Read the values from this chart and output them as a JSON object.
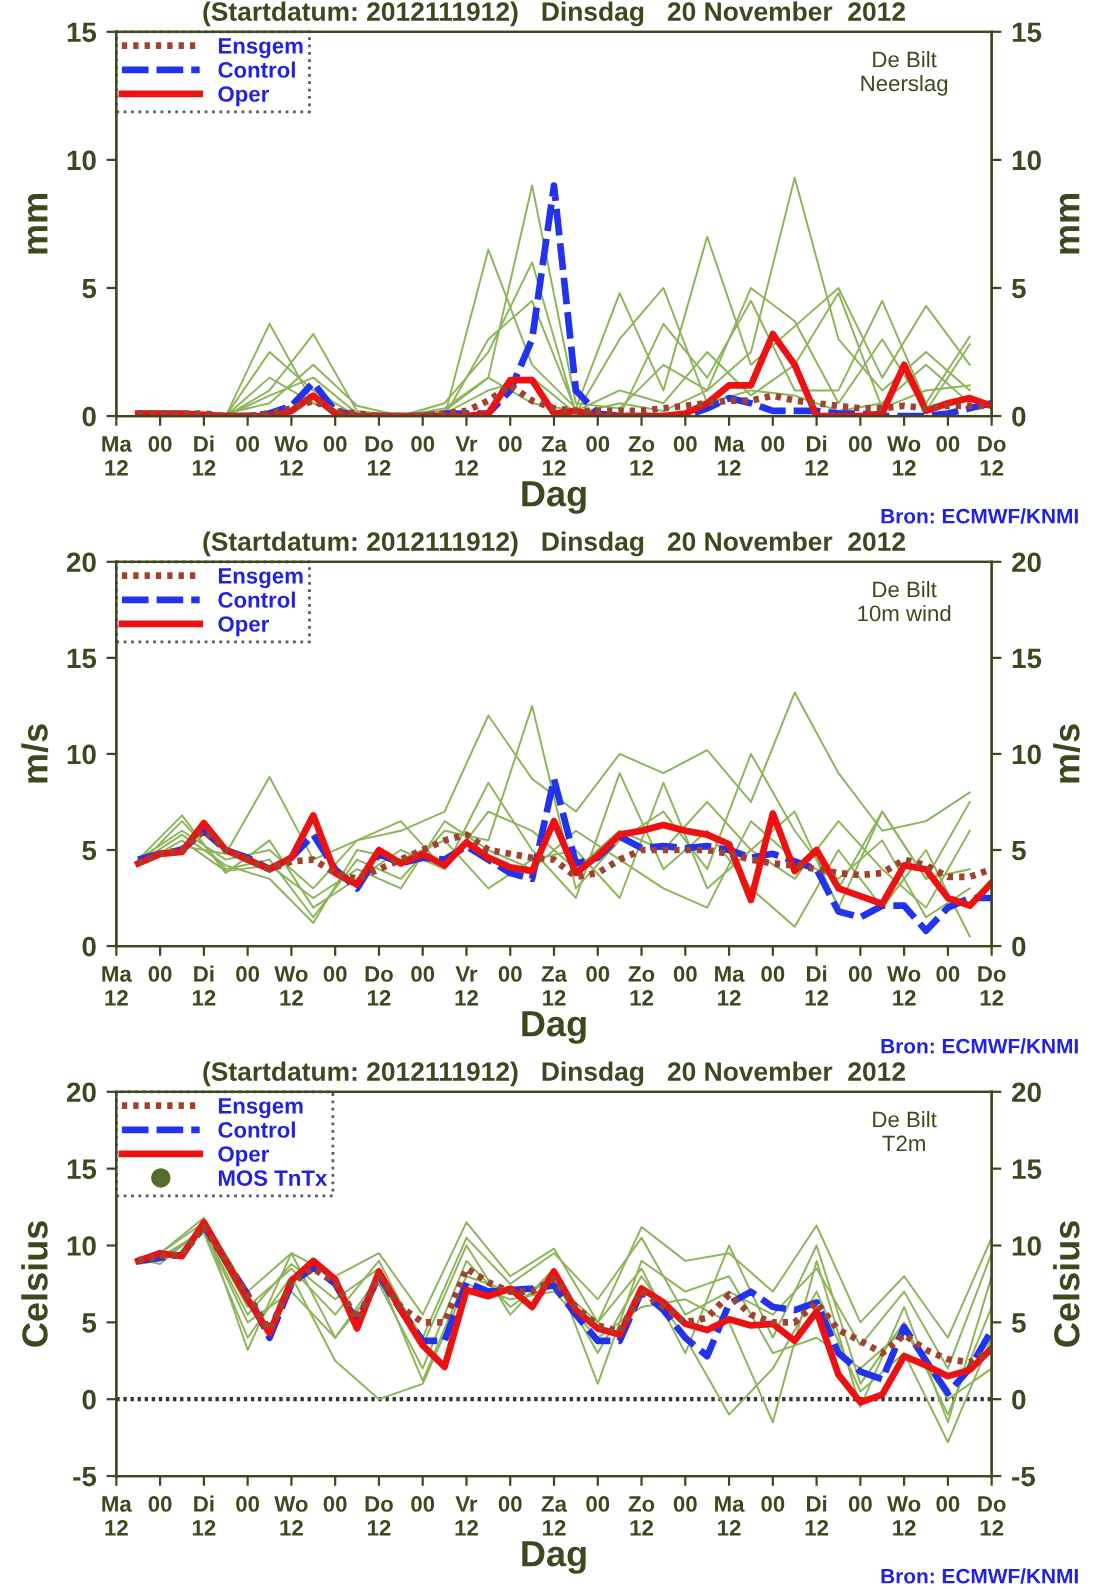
{
  "chart_data": [
    {
      "type": "line",
      "title": "(Startdatum: 2012111912)   Dinsdag   20 November  2012",
      "xlabel": "Dag",
      "ylabel": "mm",
      "y2label": "mm",
      "xlim": [
        "2012-11-19T12:00",
        "2012-11-29T12:00"
      ],
      "xticks": [
        {
          "value": "2012-11-19T12:00",
          "label": "Ma\n12"
        },
        {
          "value": "2012-11-20T00:00",
          "label": "00"
        },
        {
          "value": "2012-11-20T12:00",
          "label": "Di\n12"
        },
        {
          "value": "2012-11-21T00:00",
          "label": "00"
        },
        {
          "value": "2012-11-21T12:00",
          "label": "Wo\n12"
        },
        {
          "value": "2012-11-22T00:00",
          "label": "00"
        },
        {
          "value": "2012-11-22T12:00",
          "label": "Do\n12"
        },
        {
          "value": "2012-11-23T00:00",
          "label": "00"
        },
        {
          "value": "2012-11-23T12:00",
          "label": "Vr\n12"
        },
        {
          "value": "2012-11-24T00:00",
          "label": "00"
        },
        {
          "value": "2012-11-24T12:00",
          "label": "Za\n12"
        },
        {
          "value": "2012-11-25T00:00",
          "label": "00"
        },
        {
          "value": "2012-11-25T12:00",
          "label": "Zo\n12"
        },
        {
          "value": "2012-11-26T00:00",
          "label": "00"
        },
        {
          "value": "2012-11-26T12:00",
          "label": "Ma\n12"
        },
        {
          "value": "2012-11-27T00:00",
          "label": "00"
        },
        {
          "value": "2012-11-27T12:00",
          "label": "Di\n12"
        },
        {
          "value": "2012-11-28T00:00",
          "label": "00"
        },
        {
          "value": "2012-11-28T12:00",
          "label": "Wo\n12"
        },
        {
          "value": "2012-11-29T00:00",
          "label": "00"
        },
        {
          "value": "2012-11-29T12:00",
          "label": "Do\n12"
        }
      ],
      "x": [
        "2012-11-19T18:00",
        "2012-11-20T00:00",
        "2012-11-20T06:00",
        "2012-11-20T12:00",
        "2012-11-20T18:00",
        "2012-11-21T00:00",
        "2012-11-21T06:00",
        "2012-11-21T12:00",
        "2012-11-21T18:00",
        "2012-11-22T00:00",
        "2012-11-22T06:00",
        "2012-11-22T12:00",
        "2012-11-22T18:00",
        "2012-11-23T00:00",
        "2012-11-23T06:00",
        "2012-11-23T12:00",
        "2012-11-23T18:00",
        "2012-11-24T00:00",
        "2012-11-24T06:00",
        "2012-11-24T12:00",
        "2012-11-24T18:00",
        "2012-11-25T00:00",
        "2012-11-25T06:00",
        "2012-11-25T12:00",
        "2012-11-25T18:00",
        "2012-11-26T00:00",
        "2012-11-26T06:00",
        "2012-11-26T12:00",
        "2012-11-26T18:00",
        "2012-11-27T00:00",
        "2012-11-27T06:00",
        "2012-11-27T12:00",
        "2012-11-27T18:00",
        "2012-11-28T00:00",
        "2012-11-28T06:00",
        "2012-11-28T12:00",
        "2012-11-28T18:00",
        "2012-11-29T00:00",
        "2012-11-29T06:00",
        "2012-11-29T12:00"
      ],
      "ylim": [
        0,
        15
      ],
      "yticks": [
        0,
        5,
        10,
        15
      ],
      "y2lim": [
        0,
        15
      ],
      "y2ticks": [
        0,
        5,
        10,
        15
      ],
      "legend": "top left",
      "grid": false,
      "annotations": [
        "De Bilt\nNeerslag",
        "Bron: ECMWF/KNMI"
      ],
      "series": [
        {
          "color": "#8cb55a",
          "line_style": "solid",
          "x": [
            "2012-11-19T18:00",
            "2012-11-20T06:00",
            "2012-11-20T18:00",
            "2012-11-21T06:00",
            "2012-11-21T18:00",
            "2012-11-22T06:00",
            "2012-11-22T18:00",
            "2012-11-23T06:00",
            "2012-11-23T18:00",
            "2012-11-24T06:00",
            "2012-11-24T18:00",
            "2012-11-25T06:00",
            "2012-11-25T18:00",
            "2012-11-26T06:00",
            "2012-11-26T18:00",
            "2012-11-27T06:00",
            "2012-11-27T18:00",
            "2012-11-28T06:00",
            "2012-11-28T18:00",
            "2012-11-29T06:00"
          ],
          "values": [
            0.1,
            0.1,
            0,
            3.6,
            0.5,
            0,
            0,
            0.2,
            1.5,
            9.0,
            0.5,
            0.3,
            2.0,
            1.0,
            2.5,
            9.3,
            3.0,
            1.0,
            2.5,
            1.0
          ]
        },
        {
          "color": "#8cb55a",
          "line_style": "solid",
          "x": [
            "2012-11-19T18:00",
            "2012-11-20T06:00",
            "2012-11-20T18:00",
            "2012-11-21T06:00",
            "2012-11-21T18:00",
            "2012-11-22T06:00",
            "2012-11-22T18:00",
            "2012-11-23T06:00",
            "2012-11-23T18:00",
            "2012-11-24T06:00",
            "2012-11-24T18:00",
            "2012-11-25T06:00",
            "2012-11-25T18:00",
            "2012-11-26T06:00",
            "2012-11-26T18:00",
            "2012-11-27T06:00",
            "2012-11-27T18:00",
            "2012-11-28T06:00",
            "2012-11-28T18:00",
            "2012-11-29T06:00"
          ],
          "values": [
            0.2,
            0,
            0,
            1.0,
            3.2,
            0.2,
            0,
            0,
            6.5,
            2.0,
            0.3,
            4.8,
            1.0,
            7.0,
            2.0,
            3.5,
            5.0,
            1.5,
            4.3,
            2.0
          ]
        },
        {
          "color": "#8cb55a",
          "line_style": "solid",
          "x": [
            "2012-11-19T18:00",
            "2012-11-20T06:00",
            "2012-11-20T18:00",
            "2012-11-21T06:00",
            "2012-11-21T18:00",
            "2012-11-22T06:00",
            "2012-11-22T18:00",
            "2012-11-23T06:00",
            "2012-11-23T18:00",
            "2012-11-24T06:00",
            "2012-11-24T18:00",
            "2012-11-25T06:00",
            "2012-11-25T18:00",
            "2012-11-26T06:00",
            "2012-11-26T18:00",
            "2012-11-27T06:00",
            "2012-11-27T18:00",
            "2012-11-28T06:00",
            "2012-11-28T18:00",
            "2012-11-29T06:00"
          ],
          "values": [
            0.1,
            0.1,
            0,
            2.5,
            1.0,
            0,
            0.1,
            0,
            3.0,
            4.5,
            0.2,
            0,
            3.6,
            1.5,
            4.5,
            1.0,
            1.0,
            4.5,
            0.5,
            3.1
          ]
        },
        {
          "color": "#8cb55a",
          "line_style": "solid",
          "x": [
            "2012-11-19T18:00",
            "2012-11-20T06:00",
            "2012-11-20T18:00",
            "2012-11-21T06:00",
            "2012-11-21T18:00",
            "2012-11-22T06:00",
            "2012-11-22T18:00",
            "2012-11-23T06:00",
            "2012-11-23T18:00",
            "2012-11-24T06:00",
            "2012-11-24T18:00",
            "2012-11-25T06:00",
            "2012-11-25T18:00",
            "2012-11-26T06:00",
            "2012-11-26T18:00",
            "2012-11-27T06:00",
            "2012-11-27T18:00",
            "2012-11-28T06:00",
            "2012-11-28T18:00",
            "2012-11-29T06:00"
          ],
          "values": [
            0,
            0,
            0.1,
            0.5,
            2.0,
            0.4,
            0,
            0.3,
            1.5,
            0.5,
            0.2,
            1.0,
            0.5,
            2.5,
            0.8,
            2.0,
            4.8,
            0.3,
            1.0,
            1.2
          ]
        },
        {
          "color": "#8cb55a",
          "line_style": "solid",
          "x": [
            "2012-11-19T18:00",
            "2012-11-20T06:00",
            "2012-11-20T18:00",
            "2012-11-21T06:00",
            "2012-11-21T18:00",
            "2012-11-22T06:00",
            "2012-11-22T18:00",
            "2012-11-23T06:00",
            "2012-11-23T18:00",
            "2012-11-24T06:00",
            "2012-11-24T18:00",
            "2012-11-25T06:00",
            "2012-11-25T18:00",
            "2012-11-26T06:00",
            "2012-11-26T18:00",
            "2012-11-27T06:00",
            "2012-11-27T18:00",
            "2012-11-28T06:00",
            "2012-11-28T18:00",
            "2012-11-29T06:00"
          ],
          "values": [
            0.1,
            0,
            0,
            1.5,
            0.5,
            0,
            0,
            0.5,
            2.5,
            6.0,
            0.1,
            3.0,
            5.0,
            0.5,
            1.0,
            0.8,
            0.2,
            0.5,
            2.0,
            0.5
          ]
        },
        {
          "color": "#8cb55a",
          "line_style": "solid",
          "x": [
            "2012-11-19T18:00",
            "2012-11-20T06:00",
            "2012-11-20T18:00",
            "2012-11-21T06:00",
            "2012-11-21T18:00",
            "2012-11-22T06:00",
            "2012-11-22T18:00",
            "2012-11-23T06:00",
            "2012-11-23T18:00",
            "2012-11-24T06:00",
            "2012-11-24T18:00",
            "2012-11-25T06:00",
            "2012-11-25T18:00",
            "2012-11-26T06:00",
            "2012-11-26T18:00",
            "2012-11-27T06:00",
            "2012-11-27T18:00",
            "2012-11-28T06:00",
            "2012-11-28T18:00",
            "2012-11-29T06:00"
          ],
          "values": [
            0,
            0.1,
            0,
            0.8,
            1.5,
            0.1,
            0,
            0.1,
            1.0,
            1.5,
            0.1,
            0.5,
            0.2,
            1.0,
            5.0,
            3.7,
            0.5,
            3.0,
            0.2,
            2.8
          ]
        },
        {
          "name": "Ensgem",
          "color": "#a0422e",
          "line_style": "dotted",
          "values": [
            0.1,
            0.1,
            0.1,
            0.1,
            0,
            0,
            0.1,
            0.3,
            0.6,
            0.2,
            0.1,
            0,
            0,
            0,
            0.1,
            0.2,
            0.6,
            1.2,
            0.6,
            0.3,
            0.2,
            0.2,
            0.2,
            0.2,
            0.3,
            0.4,
            0.5,
            0.6,
            0.6,
            0.8,
            0.6,
            0.5,
            0.4,
            0.3,
            0.3,
            0.4,
            0.3,
            0.4,
            0.4,
            0.4
          ]
        },
        {
          "name": "Control",
          "color": "#2233ee",
          "line_style": "dashed",
          "values": [
            null,
            null,
            null,
            null,
            0,
            0,
            0.1,
            0.4,
            1.3,
            0.2,
            0,
            0,
            0,
            0,
            0.1,
            0.1,
            0.1,
            1.0,
            3.0,
            9.0,
            1.0,
            0.1,
            0,
            0,
            0,
            0,
            0.3,
            0.7,
            0.5,
            0.2,
            0.2,
            0.2,
            0.1,
            0.1,
            0,
            0,
            0,
            0.1,
            0.3,
            0.5
          ]
        },
        {
          "name": "Oper",
          "color": "#ee1111",
          "line_style": "solid",
          "values": [
            0.1,
            0.1,
            0.1,
            0.05,
            0,
            0,
            0,
            0.2,
            0.8,
            0.1,
            0,
            0,
            0,
            0,
            0,
            0,
            0.1,
            1.4,
            1.4,
            0.1,
            0.2,
            0,
            0,
            0,
            0,
            0.1,
            0.5,
            1.2,
            1.2,
            3.2,
            2.0,
            0,
            0,
            0,
            0.1,
            2.0,
            0.2,
            0.5,
            0.7,
            0.4
          ]
        }
      ]
    },
    {
      "type": "line",
      "title": "(Startdatum: 2012111912)   Dinsdag   20 November  2012",
      "xlabel": "Dag",
      "ylabel": "m/s",
      "y2label": "m/s",
      "xlim": [
        "2012-11-19T12:00",
        "2012-11-29T12:00"
      ],
      "xticks": [
        {
          "value": "2012-11-19T12:00",
          "label": "Ma\n12"
        },
        {
          "value": "2012-11-20T00:00",
          "label": "00"
        },
        {
          "value": "2012-11-20T12:00",
          "label": "Di\n12"
        },
        {
          "value": "2012-11-21T00:00",
          "label": "00"
        },
        {
          "value": "2012-11-21T12:00",
          "label": "Wo\n12"
        },
        {
          "value": "2012-11-22T00:00",
          "label": "00"
        },
        {
          "value": "2012-11-22T12:00",
          "label": "Do\n12"
        },
        {
          "value": "2012-11-23T00:00",
          "label": "00"
        },
        {
          "value": "2012-11-23T12:00",
          "label": "Vr\n12"
        },
        {
          "value": "2012-11-24T00:00",
          "label": "00"
        },
        {
          "value": "2012-11-24T12:00",
          "label": "Za\n12"
        },
        {
          "value": "2012-11-25T00:00",
          "label": "00"
        },
        {
          "value": "2012-11-25T12:00",
          "label": "Zo\n12"
        },
        {
          "value": "2012-11-26T00:00",
          "label": "00"
        },
        {
          "value": "2012-11-26T12:00",
          "label": "Ma\n12"
        },
        {
          "value": "2012-11-27T00:00",
          "label": "00"
        },
        {
          "value": "2012-11-27T12:00",
          "label": "Di\n12"
        },
        {
          "value": "2012-11-28T00:00",
          "label": "00"
        },
        {
          "value": "2012-11-28T12:00",
          "label": "Wo\n12"
        },
        {
          "value": "2012-11-29T00:00",
          "label": "00"
        },
        {
          "value": "2012-11-29T12:00",
          "label": "Do\n12"
        }
      ],
      "x": [
        "2012-11-19T18:00",
        "2012-11-20T00:00",
        "2012-11-20T06:00",
        "2012-11-20T12:00",
        "2012-11-20T18:00",
        "2012-11-21T00:00",
        "2012-11-21T06:00",
        "2012-11-21T12:00",
        "2012-11-21T18:00",
        "2012-11-22T00:00",
        "2012-11-22T06:00",
        "2012-11-22T12:00",
        "2012-11-22T18:00",
        "2012-11-23T00:00",
        "2012-11-23T06:00",
        "2012-11-23T12:00",
        "2012-11-23T18:00",
        "2012-11-24T00:00",
        "2012-11-24T06:00",
        "2012-11-24T12:00",
        "2012-11-24T18:00",
        "2012-11-25T00:00",
        "2012-11-25T06:00",
        "2012-11-25T12:00",
        "2012-11-25T18:00",
        "2012-11-26T00:00",
        "2012-11-26T06:00",
        "2012-11-26T12:00",
        "2012-11-26T18:00",
        "2012-11-27T00:00",
        "2012-11-27T06:00",
        "2012-11-27T12:00",
        "2012-11-27T18:00",
        "2012-11-28T00:00",
        "2012-11-28T06:00",
        "2012-11-28T12:00",
        "2012-11-28T18:00",
        "2012-11-29T00:00",
        "2012-11-29T06:00",
        "2012-11-29T12:00"
      ],
      "ylim": [
        0,
        20
      ],
      "yticks": [
        0,
        5,
        10,
        15,
        20
      ],
      "y2lim": [
        0,
        20
      ],
      "y2ticks": [
        0,
        5,
        10,
        15,
        20
      ],
      "legend": "top left",
      "grid": false,
      "annotations": [
        "De Bilt\n10m wind",
        "Bron: ECMWF/KNMI"
      ],
      "series": [
        {
          "color": "#8cb55a",
          "line_style": "solid",
          "x": [
            "2012-11-19T18:00",
            "2012-11-20T06:00",
            "2012-11-20T18:00",
            "2012-11-21T06:00",
            "2012-11-21T18:00",
            "2012-11-22T06:00",
            "2012-11-22T18:00",
            "2012-11-23T06:00",
            "2012-11-23T18:00",
            "2012-11-24T06:00",
            "2012-11-24T18:00",
            "2012-11-25T06:00",
            "2012-11-25T18:00",
            "2012-11-26T06:00",
            "2012-11-26T18:00",
            "2012-11-27T06:00",
            "2012-11-27T18:00",
            "2012-11-28T06:00",
            "2012-11-28T18:00",
            "2012-11-29T06:00"
          ],
          "values": [
            4.4,
            5.2,
            4.8,
            8.8,
            4.5,
            5.5,
            6.0,
            7.0,
            12.0,
            8.7,
            7.0,
            10.0,
            9.0,
            10.2,
            7.5,
            13.2,
            9.0,
            6.0,
            6.5,
            8.0
          ]
        },
        {
          "color": "#8cb55a",
          "line_style": "solid",
          "x": [
            "2012-11-19T18:00",
            "2012-11-20T06:00",
            "2012-11-20T18:00",
            "2012-11-21T06:00",
            "2012-11-21T18:00",
            "2012-11-22T06:00",
            "2012-11-22T18:00",
            "2012-11-23T06:00",
            "2012-11-23T18:00",
            "2012-11-24T06:00",
            "2012-11-24T18:00",
            "2012-11-25T06:00",
            "2012-11-25T18:00",
            "2012-11-26T06:00",
            "2012-11-26T18:00",
            "2012-11-27T06:00",
            "2012-11-27T18:00",
            "2012-11-28T06:00",
            "2012-11-28T18:00",
            "2012-11-29T06:00"
          ],
          "values": [
            4.2,
            6.5,
            4.0,
            4.5,
            1.5,
            4.5,
            3.5,
            6.0,
            5.5,
            12.5,
            3.0,
            5.5,
            7.0,
            4.0,
            10.0,
            6.0,
            3.0,
            7.0,
            3.5,
            4.0
          ]
        },
        {
          "color": "#8cb55a",
          "line_style": "solid",
          "x": [
            "2012-11-19T18:00",
            "2012-11-20T06:00",
            "2012-11-20T18:00",
            "2012-11-21T06:00",
            "2012-11-21T18:00",
            "2012-11-22T06:00",
            "2012-11-22T18:00",
            "2012-11-23T06:00",
            "2012-11-23T18:00",
            "2012-11-24T06:00",
            "2012-11-24T18:00",
            "2012-11-25T06:00",
            "2012-11-25T18:00",
            "2012-11-26T06:00",
            "2012-11-26T18:00",
            "2012-11-27T06:00",
            "2012-11-27T18:00",
            "2012-11-28T06:00",
            "2012-11-28T18:00",
            "2012-11-29T06:00"
          ],
          "values": [
            4.5,
            6.8,
            3.8,
            5.5,
            2.0,
            3.5,
            5.0,
            4.0,
            8.5,
            5.0,
            2.5,
            9.0,
            4.0,
            6.0,
            3.0,
            1.0,
            5.0,
            2.0,
            5.0,
            0.5
          ]
        },
        {
          "color": "#8cb55a",
          "line_style": "solid",
          "x": [
            "2012-11-19T18:00",
            "2012-11-20T06:00",
            "2012-11-20T18:00",
            "2012-11-21T06:00",
            "2012-11-21T18:00",
            "2012-11-22T06:00",
            "2012-11-22T18:00",
            "2012-11-23T06:00",
            "2012-11-23T18:00",
            "2012-11-24T06:00",
            "2012-11-24T18:00",
            "2012-11-25T06:00",
            "2012-11-25T18:00",
            "2012-11-26T06:00",
            "2012-11-26T18:00",
            "2012-11-27T06:00",
            "2012-11-27T18:00",
            "2012-11-28T06:00",
            "2012-11-28T18:00",
            "2012-11-29T06:00"
          ],
          "values": [
            4.3,
            5.8,
            4.2,
            3.5,
            1.2,
            5.0,
            4.5,
            5.5,
            3.0,
            4.5,
            5.0,
            2.5,
            8.5,
            3.0,
            5.0,
            3.5,
            6.5,
            4.0,
            2.0,
            6.0
          ]
        },
        {
          "color": "#8cb55a",
          "line_style": "solid",
          "x": [
            "2012-11-19T18:00",
            "2012-11-20T06:00",
            "2012-11-20T18:00",
            "2012-11-21T06:00",
            "2012-11-21T18:00",
            "2012-11-22T06:00",
            "2012-11-22T18:00",
            "2012-11-23T06:00",
            "2012-11-23T18:00",
            "2012-11-24T06:00",
            "2012-11-24T18:00",
            "2012-11-25T06:00",
            "2012-11-25T18:00",
            "2012-11-26T06:00",
            "2012-11-26T18:00",
            "2012-11-27T06:00",
            "2012-11-27T18:00",
            "2012-11-28T06:00",
            "2012-11-28T18:00",
            "2012-11-29T06:00"
          ],
          "values": [
            4.5,
            6.0,
            4.5,
            5.0,
            3.0,
            5.5,
            6.5,
            4.0,
            7.0,
            6.0,
            4.0,
            6.0,
            5.0,
            7.5,
            5.0,
            7.0,
            2.0,
            7.0,
            3.5,
            7.5
          ]
        },
        {
          "color": "#8cb55a",
          "line_style": "solid",
          "x": [
            "2012-11-19T18:00",
            "2012-11-20T06:00",
            "2012-11-20T18:00",
            "2012-11-21T06:00",
            "2012-11-21T18:00",
            "2012-11-22T06:00",
            "2012-11-22T18:00",
            "2012-11-23T06:00",
            "2012-11-23T18:00",
            "2012-11-24T06:00",
            "2012-11-24T18:00",
            "2012-11-25T06:00",
            "2012-11-25T18:00",
            "2012-11-26T06:00",
            "2012-11-26T18:00",
            "2012-11-27T06:00",
            "2012-11-27T18:00",
            "2012-11-28T06:00",
            "2012-11-28T18:00",
            "2012-11-29T06:00"
          ],
          "values": [
            4.2,
            5.5,
            3.9,
            4.2,
            2.5,
            4.0,
            3.0,
            6.5,
            5.0,
            4.0,
            6.0,
            4.5,
            3.0,
            2.0,
            6.5,
            4.5,
            3.5,
            5.5,
            1.5,
            3.0
          ]
        },
        {
          "name": "Ensgem",
          "color": "#a0422e",
          "line_style": "dotted",
          "values": [
            4.3,
            4.8,
            5.0,
            6.0,
            5.0,
            4.5,
            4.0,
            4.4,
            4.5,
            3.8,
            3.5,
            4.0,
            4.5,
            5.0,
            5.5,
            5.8,
            5.0,
            4.8,
            4.6,
            4.5,
            3.6,
            3.8,
            4.5,
            5.0,
            5.0,
            5.0,
            5.0,
            4.8,
            4.5,
            4.3,
            4.2,
            4.0,
            3.8,
            3.7,
            3.8,
            4.5,
            4.2,
            3.6,
            3.6,
            4.0
          ]
        },
        {
          "name": "Control",
          "color": "#2233ee",
          "line_style": "dashed",
          "values": [
            4.5,
            4.8,
            5.0,
            6.0,
            5.0,
            4.6,
            4.0,
            4.6,
            5.8,
            4.0,
            3.0,
            4.8,
            4.3,
            4.6,
            4.5,
            5.2,
            4.5,
            3.8,
            3.5,
            8.7,
            4.3,
            4.6,
            5.7,
            5.1,
            5.2,
            5.1,
            5.2,
            5.0,
            4.6,
            4.8,
            4.4,
            4.0,
            1.8,
            1.5,
            2.1,
            2.1,
            0.8,
            2.0,
            2.5,
            2.5
          ]
        },
        {
          "name": "Oper",
          "color": "#ee1111",
          "line_style": "solid",
          "values": [
            4.3,
            4.8,
            4.9,
            6.4,
            5.0,
            4.5,
            4.0,
            4.6,
            6.8,
            3.8,
            3.2,
            5.0,
            4.3,
            4.8,
            4.2,
            5.4,
            4.6,
            4.1,
            3.9,
            6.5,
            3.8,
            4.7,
            5.8,
            6.0,
            6.3,
            6.0,
            5.8,
            5.3,
            2.4,
            6.9,
            3.9,
            5.0,
            3.0,
            2.6,
            2.2,
            4.2,
            4.0,
            2.5,
            2.1,
            3.3
          ]
        }
      ]
    },
    {
      "type": "line",
      "title": "(Startdatum: 2012111912)   Dinsdag   20 November  2012",
      "xlabel": "Dag",
      "ylabel": "Celsius",
      "y2label": "Celsius",
      "xlim": [
        "2012-11-19T12:00",
        "2012-11-29T12:00"
      ],
      "xticks": [
        {
          "value": "2012-11-19T12:00",
          "label": "Ma\n12"
        },
        {
          "value": "2012-11-20T00:00",
          "label": "00"
        },
        {
          "value": "2012-11-20T12:00",
          "label": "Di\n12"
        },
        {
          "value": "2012-11-21T00:00",
          "label": "00"
        },
        {
          "value": "2012-11-21T12:00",
          "label": "Wo\n12"
        },
        {
          "value": "2012-11-22T00:00",
          "label": "00"
        },
        {
          "value": "2012-11-22T12:00",
          "label": "Do\n12"
        },
        {
          "value": "2012-11-23T00:00",
          "label": "00"
        },
        {
          "value": "2012-11-23T12:00",
          "label": "Vr\n12"
        },
        {
          "value": "2012-11-24T00:00",
          "label": "00"
        },
        {
          "value": "2012-11-24T12:00",
          "label": "Za\n12"
        },
        {
          "value": "2012-11-25T00:00",
          "label": "00"
        },
        {
          "value": "2012-11-25T12:00",
          "label": "Zo\n12"
        },
        {
          "value": "2012-11-26T00:00",
          "label": "00"
        },
        {
          "value": "2012-11-26T12:00",
          "label": "Ma\n12"
        },
        {
          "value": "2012-11-27T00:00",
          "label": "00"
        },
        {
          "value": "2012-11-27T12:00",
          "label": "Di\n12"
        },
        {
          "value": "2012-11-28T00:00",
          "label": "00"
        },
        {
          "value": "2012-11-28T12:00",
          "label": "Wo\n12"
        },
        {
          "value": "2012-11-29T00:00",
          "label": "00"
        },
        {
          "value": "2012-11-29T12:00",
          "label": "Do\n12"
        }
      ],
      "x": [
        "2012-11-19T18:00",
        "2012-11-20T00:00",
        "2012-11-20T06:00",
        "2012-11-20T12:00",
        "2012-11-20T18:00",
        "2012-11-21T00:00",
        "2012-11-21T06:00",
        "2012-11-21T12:00",
        "2012-11-21T18:00",
        "2012-11-22T00:00",
        "2012-11-22T06:00",
        "2012-11-22T12:00",
        "2012-11-22T18:00",
        "2012-11-23T00:00",
        "2012-11-23T06:00",
        "2012-11-23T12:00",
        "2012-11-23T18:00",
        "2012-11-24T00:00",
        "2012-11-24T06:00",
        "2012-11-24T12:00",
        "2012-11-24T18:00",
        "2012-11-25T00:00",
        "2012-11-25T06:00",
        "2012-11-25T12:00",
        "2012-11-25T18:00",
        "2012-11-26T00:00",
        "2012-11-26T06:00",
        "2012-11-26T12:00",
        "2012-11-26T18:00",
        "2012-11-27T00:00",
        "2012-11-27T06:00",
        "2012-11-27T12:00",
        "2012-11-27T18:00",
        "2012-11-28T00:00",
        "2012-11-28T06:00",
        "2012-11-28T12:00",
        "2012-11-28T18:00",
        "2012-11-29T00:00",
        "2012-11-29T06:00",
        "2012-11-29T12:00"
      ],
      "ylim": [
        -5,
        20
      ],
      "yticks": [
        -5,
        0,
        5,
        10,
        15,
        20
      ],
      "y2lim": [
        -5,
        20
      ],
      "y2ticks": [
        -5,
        0,
        5,
        10,
        15,
        20
      ],
      "legend": "top left",
      "grid": false,
      "annotations": [
        "De Bilt\nT2m",
        "Bron: ECMWF/KNMI",
        "MOS TnTx"
      ],
      "ref_lines": [
        {
          "axis": "y",
          "value": 0,
          "color": "#333333",
          "line_style": "dotted"
        }
      ],
      "series": [
        {
          "color": "#8cb55a",
          "line_style": "solid",
          "x": [
            "2012-11-19T18:00",
            "2012-11-20T00:00",
            "2012-11-20T12:00",
            "2012-11-21T00:00",
            "2012-11-21T12:00",
            "2012-11-22T00:00",
            "2012-11-22T12:00",
            "2012-11-23T00:00",
            "2012-11-23T12:00",
            "2012-11-24T00:00",
            "2012-11-24T12:00",
            "2012-11-25T00:00",
            "2012-11-25T12:00",
            "2012-11-26T00:00",
            "2012-11-26T12:00",
            "2012-11-27T00:00",
            "2012-11-27T12:00",
            "2012-11-28T00:00",
            "2012-11-28T12:00",
            "2012-11-29T00:00",
            "2012-11-29T12:00"
          ],
          "values": [
            9.2,
            9.5,
            11.8,
            7.0,
            9.5,
            8.0,
            9.5,
            5.5,
            11.5,
            8.0,
            9.8,
            5.0,
            11.2,
            9.0,
            9.5,
            7.0,
            11.3,
            5.0,
            8.0,
            4.0,
            10.5
          ]
        },
        {
          "color": "#8cb55a",
          "line_style": "solid",
          "x": [
            "2012-11-19T18:00",
            "2012-11-20T00:00",
            "2012-11-20T12:00",
            "2012-11-21T00:00",
            "2012-11-21T12:00",
            "2012-11-22T00:00",
            "2012-11-22T12:00",
            "2012-11-23T00:00",
            "2012-11-23T12:00",
            "2012-11-24T00:00",
            "2012-11-24T12:00",
            "2012-11-25T00:00",
            "2012-11-25T12:00",
            "2012-11-26T00:00",
            "2012-11-26T12:00",
            "2012-11-27T00:00",
            "2012-11-27T12:00",
            "2012-11-28T00:00",
            "2012-11-28T12:00",
            "2012-11-29T00:00",
            "2012-11-29T12:00"
          ],
          "values": [
            8.8,
            9.0,
            11.0,
            5.0,
            7.0,
            4.0,
            7.5,
            2.0,
            9.0,
            6.0,
            8.0,
            3.0,
            8.0,
            4.0,
            -1.0,
            2.0,
            7.0,
            0.5,
            3.0,
            -2.8,
            4.0
          ]
        },
        {
          "color": "#8cb55a",
          "line_style": "solid",
          "x": [
            "2012-11-19T18:00",
            "2012-11-20T00:00",
            "2012-11-20T12:00",
            "2012-11-21T00:00",
            "2012-11-21T12:00",
            "2012-11-22T00:00",
            "2012-11-22T12:00",
            "2012-11-23T00:00",
            "2012-11-23T12:00",
            "2012-11-24T00:00",
            "2012-11-24T12:00",
            "2012-11-25T00:00",
            "2012-11-25T12:00",
            "2012-11-26T00:00",
            "2012-11-26T12:00",
            "2012-11-27T00:00",
            "2012-11-27T12:00",
            "2012-11-28T00:00",
            "2012-11-28T12:00",
            "2012-11-29T00:00",
            "2012-11-29T12:00"
          ],
          "values": [
            9.0,
            9.3,
            10.8,
            4.0,
            8.0,
            2.5,
            0.0,
            1.0,
            7.5,
            6.5,
            7.0,
            4.0,
            6.0,
            6.5,
            5.0,
            -1.5,
            9.0,
            -0.5,
            6.0,
            -1.5,
            8.0
          ]
        },
        {
          "color": "#8cb55a",
          "line_style": "solid",
          "x": [
            "2012-11-19T18:00",
            "2012-11-20T00:00",
            "2012-11-20T12:00",
            "2012-11-21T00:00",
            "2012-11-21T12:00",
            "2012-11-22T00:00",
            "2012-11-22T12:00",
            "2012-11-23T00:00",
            "2012-11-23T12:00",
            "2012-11-24T00:00",
            "2012-11-24T12:00",
            "2012-11-25T00:00",
            "2012-11-25T12:00",
            "2012-11-26T00:00",
            "2012-11-26T12:00",
            "2012-11-27T00:00",
            "2012-11-27T12:00",
            "2012-11-28T00:00",
            "2012-11-28T12:00",
            "2012-11-29T00:00",
            "2012-11-29T12:00"
          ],
          "values": [
            9.1,
            8.8,
            11.2,
            6.0,
            8.5,
            5.5,
            9.0,
            3.5,
            10.0,
            5.5,
            8.5,
            1.0,
            9.0,
            7.0,
            8.0,
            3.0,
            4.0,
            2.0,
            4.5,
            0.0,
            2.0
          ]
        },
        {
          "color": "#8cb55a",
          "line_style": "solid",
          "x": [
            "2012-11-19T18:00",
            "2012-11-20T00:00",
            "2012-11-20T12:00",
            "2012-11-21T00:00",
            "2012-11-21T12:00",
            "2012-11-22T00:00",
            "2012-11-22T12:00",
            "2012-11-23T00:00",
            "2012-11-23T12:00",
            "2012-11-24T00:00",
            "2012-11-24T12:00",
            "2012-11-25T00:00",
            "2012-11-25T12:00",
            "2012-11-26T00:00",
            "2012-11-26T12:00",
            "2012-11-27T00:00",
            "2012-11-27T12:00",
            "2012-11-28T00:00",
            "2012-11-28T12:00",
            "2012-11-29T00:00",
            "2012-11-29T12:00"
          ],
          "values": [
            8.9,
            9.5,
            11.5,
            3.2,
            9.5,
            4.0,
            8.0,
            1.2,
            8.0,
            7.0,
            7.5,
            5.0,
            8.5,
            3.0,
            10.0,
            4.0,
            10.0,
            1.0,
            5.0,
            -1.0,
            6.0
          ]
        },
        {
          "color": "#8cb55a",
          "line_style": "solid",
          "x": [
            "2012-11-19T18:00",
            "2012-11-20T00:00",
            "2012-11-20T12:00",
            "2012-11-21T00:00",
            "2012-11-21T12:00",
            "2012-11-22T00:00",
            "2012-11-22T12:00",
            "2012-11-23T00:00",
            "2012-11-23T12:00",
            "2012-11-24T00:00",
            "2012-11-24T12:00",
            "2012-11-25T00:00",
            "2012-11-25T12:00",
            "2012-11-26T00:00",
            "2012-11-26T12:00",
            "2012-11-27T00:00",
            "2012-11-27T12:00",
            "2012-11-28T00:00",
            "2012-11-28T12:00",
            "2012-11-29T00:00",
            "2012-11-29T12:00"
          ],
          "values": [
            9.0,
            9.2,
            11.0,
            5.5,
            8.8,
            6.5,
            8.5,
            4.0,
            10.5,
            7.5,
            9.5,
            6.5,
            10.5,
            5.5,
            7.0,
            5.5,
            8.5,
            3.5,
            7.0,
            2.0,
            9.5
          ]
        },
        {
          "name": "Ensgem",
          "color": "#a0422e",
          "line_style": "dotted",
          "values": [
            9.0,
            9.3,
            9.4,
            11.2,
            9.0,
            6.8,
            4.5,
            7.6,
            8.5,
            7.6,
            5.2,
            8.0,
            6.0,
            5.0,
            5.0,
            8.5,
            7.6,
            7.0,
            7.0,
            7.8,
            6.0,
            4.8,
            4.4,
            7.0,
            6.0,
            5.0,
            5.3,
            6.8,
            5.5,
            5.0,
            5.0,
            6.3,
            4.5,
            3.8,
            3.0,
            4.2,
            3.2,
            2.6,
            2.4,
            3.2
          ]
        },
        {
          "name": "Control",
          "color": "#2233ee",
          "line_style": "dashed",
          "values": [
            9.0,
            9.2,
            9.4,
            11.3,
            9.0,
            6.8,
            4.0,
            7.5,
            8.6,
            7.5,
            5.0,
            8.0,
            5.8,
            3.8,
            3.8,
            7.6,
            7.0,
            7.1,
            7.2,
            7.4,
            5.5,
            3.8,
            3.8,
            7.0,
            5.8,
            4.0,
            2.8,
            6.2,
            7.0,
            6.0,
            5.8,
            6.3,
            3.0,
            1.8,
            1.3,
            4.7,
            2.5,
            0.4,
            2.0,
            4.5
          ]
        },
        {
          "name": "Oper",
          "color": "#ee1111",
          "line_style": "solid",
          "values": [
            9.0,
            9.5,
            9.3,
            11.5,
            9.0,
            6.5,
            4.3,
            7.7,
            9.0,
            7.8,
            4.6,
            8.3,
            5.8,
            3.5,
            2.1,
            7.1,
            6.7,
            7.2,
            6.0,
            8.3,
            5.8,
            4.6,
            4.2,
            7.2,
            6.3,
            4.9,
            4.5,
            5.2,
            4.8,
            4.9,
            3.8,
            5.7,
            1.6,
            -0.2,
            0.3,
            2.8,
            2.2,
            1.5,
            1.9,
            3.3
          ]
        }
      ]
    }
  ]
}
